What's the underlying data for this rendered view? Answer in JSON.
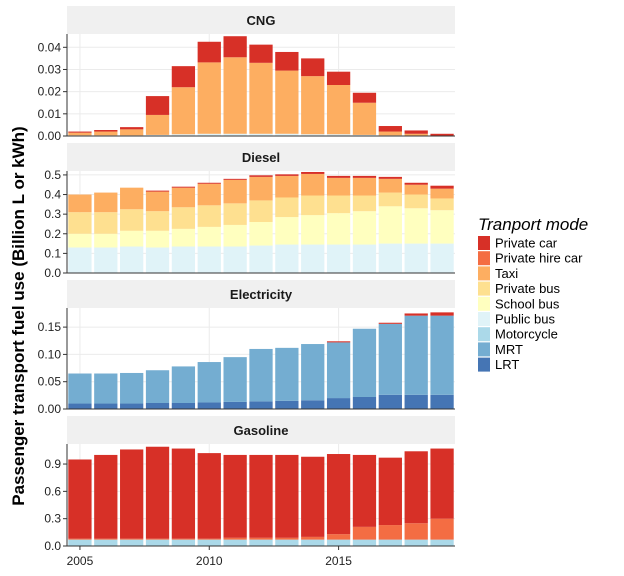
{
  "chart_data": {
    "type": "bar",
    "stacked": true,
    "faceted": true,
    "ylabel": "Passenger transport fuel use (Billion L or kWh)",
    "xlabel": "",
    "x": [
      2005,
      2006,
      2007,
      2008,
      2009,
      2010,
      2011,
      2012,
      2013,
      2014,
      2015,
      2016,
      2017,
      2018,
      2019
    ],
    "x_ticks": [
      2005,
      2010,
      2015
    ],
    "x_tick_labels": [
      "2005",
      "2010",
      "2015"
    ],
    "legend": {
      "title": "Tranport mode",
      "position": "right",
      "items": [
        {
          "name": "Private car",
          "color": "#d73027"
        },
        {
          "name": "Private hire car",
          "color": "#f46d43"
        },
        {
          "name": "Taxi",
          "color": "#fdae61"
        },
        {
          "name": "Private bus",
          "color": "#fee090"
        },
        {
          "name": "School bus",
          "color": "#ffffbf"
        },
        {
          "name": "Public bus",
          "color": "#e0f3f8"
        },
        {
          "name": "Motorcycle",
          "color": "#abd9e9"
        },
        {
          "name": "MRT",
          "color": "#74add1"
        },
        {
          "name": "LRT",
          "color": "#4575b4"
        }
      ]
    },
    "stack_order": [
      "LRT",
      "MRT",
      "Motorcycle",
      "Public bus",
      "School bus",
      "Private bus",
      "Taxi",
      "Private hire car",
      "Private car"
    ],
    "panels": [
      {
        "title": "CNG",
        "ylim": [
          0,
          0.046
        ],
        "yticks": [
          0.0,
          0.01,
          0.02,
          0.03,
          0.04
        ],
        "ytick_labels": [
          "0.00",
          "0.01",
          "0.02",
          "0.03",
          "0.04"
        ],
        "series": [
          {
            "name": "Public bus",
            "values": [
              0.0003,
              0.0003,
              0.0003,
              0.0005,
              0.0008,
              0.001,
              0.001,
              0.001,
              0.001,
              0.0008,
              0.0008,
              0.0005,
              0.0003,
              0.0002,
              0.0001
            ]
          },
          {
            "name": "Taxi",
            "values": [
              0.0012,
              0.0017,
              0.0027,
              0.009,
              0.0212,
              0.0322,
              0.0345,
              0.032,
              0.0285,
              0.0262,
              0.0222,
              0.0145,
              0.0017,
              0.0008,
              0.0001
            ]
          },
          {
            "name": "Private car",
            "values": [
              0.0005,
              0.0007,
              0.001,
              0.0085,
              0.0095,
              0.0093,
              0.0095,
              0.0082,
              0.0084,
              0.008,
              0.006,
              0.0045,
              0.0025,
              0.0015,
              0.0008
            ]
          }
        ]
      },
      {
        "title": "Diesel",
        "ylim": [
          0,
          0.52
        ],
        "yticks": [
          0.0,
          0.1,
          0.2,
          0.3,
          0.4,
          0.5
        ],
        "ytick_labels": [
          "0.0",
          "0.1",
          "0.2",
          "0.3",
          "0.4",
          "0.5"
        ],
        "series": [
          {
            "name": "Public bus",
            "values": [
              0.13,
              0.13,
              0.135,
              0.13,
              0.135,
              0.135,
              0.135,
              0.14,
              0.145,
              0.145,
              0.145,
              0.145,
              0.15,
              0.15,
              0.15
            ]
          },
          {
            "name": "School bus",
            "values": [
              0.07,
              0.07,
              0.08,
              0.085,
              0.09,
              0.1,
              0.11,
              0.12,
              0.14,
              0.15,
              0.16,
              0.17,
              0.19,
              0.18,
              0.17
            ]
          },
          {
            "name": "Private bus",
            "values": [
              0.11,
              0.11,
              0.11,
              0.1,
              0.11,
              0.11,
              0.11,
              0.11,
              0.1,
              0.1,
              0.09,
              0.08,
              0.07,
              0.07,
              0.06
            ]
          },
          {
            "name": "Taxi",
            "values": [
              0.09,
              0.1,
              0.11,
              0.1,
              0.1,
              0.11,
              0.12,
              0.12,
              0.11,
              0.11,
              0.09,
              0.09,
              0.07,
              0.05,
              0.05
            ]
          },
          {
            "name": "Private car",
            "values": [
              0.0,
              0.0,
              0.0,
              0.005,
              0.005,
              0.005,
              0.005,
              0.008,
              0.008,
              0.01,
              0.01,
              0.01,
              0.01,
              0.01,
              0.015
            ]
          }
        ]
      },
      {
        "title": "Electricity",
        "ylim": [
          0,
          0.185
        ],
        "yticks": [
          0.0,
          0.05,
          0.1,
          0.15
        ],
        "ytick_labels": [
          "0.00",
          "0.05",
          "0.10",
          "0.15"
        ],
        "series": [
          {
            "name": "LRT",
            "values": [
              0.01,
              0.01,
              0.01,
              0.011,
              0.011,
              0.012,
              0.013,
              0.014,
              0.015,
              0.016,
              0.02,
              0.022,
              0.026,
              0.026,
              0.026
            ]
          },
          {
            "name": "MRT",
            "values": [
              0.055,
              0.055,
              0.056,
              0.06,
              0.067,
              0.074,
              0.082,
              0.096,
              0.097,
              0.103,
              0.102,
              0.125,
              0.13,
              0.145,
              0.145
            ]
          },
          {
            "name": "Private car",
            "values": [
              0.0,
              0.0,
              0.0,
              0.0,
              0.0,
              0.0,
              0.0,
              0.0,
              0.0,
              0.0,
              0.002,
              0.0,
              0.002,
              0.004,
              0.006
            ]
          }
        ]
      },
      {
        "title": "Gasoline",
        "ylim": [
          0,
          1.12
        ],
        "yticks": [
          0.0,
          0.3,
          0.6,
          0.9
        ],
        "ytick_labels": [
          "0.0",
          "0.3",
          "0.6",
          "0.9"
        ],
        "series": [
          {
            "name": "Motorcycle",
            "values": [
              0.07,
              0.07,
              0.07,
              0.07,
              0.07,
              0.07,
              0.07,
              0.07,
              0.07,
              0.07,
              0.07,
              0.07,
              0.07,
              0.07,
              0.07
            ]
          },
          {
            "name": "Private hire car",
            "values": [
              0.01,
              0.01,
              0.01,
              0.01,
              0.01,
              0.01,
              0.02,
              0.02,
              0.02,
              0.03,
              0.06,
              0.14,
              0.16,
              0.18,
              0.23
            ]
          },
          {
            "name": "Private car",
            "values": [
              0.87,
              0.92,
              0.98,
              1.01,
              0.99,
              0.94,
              0.91,
              0.91,
              0.91,
              0.88,
              0.88,
              0.79,
              0.74,
              0.79,
              0.77
            ]
          }
        ]
      }
    ]
  }
}
